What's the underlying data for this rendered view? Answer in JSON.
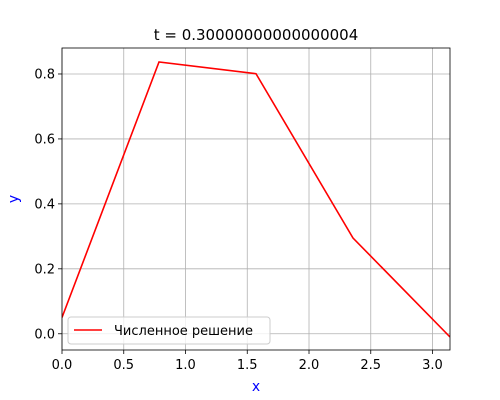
{
  "chart_data": {
    "type": "line",
    "title": "t = 0.30000000000000004",
    "xlabel": "x",
    "ylabel": "y",
    "xlim": [
      0.0,
      3.1416
    ],
    "ylim": [
      -0.05,
      0.88
    ],
    "x_ticks": [
      0.0,
      0.5,
      1.0,
      1.5,
      2.0,
      2.5,
      3.0
    ],
    "x_tick_labels": [
      "0.0",
      "0.5",
      "1.0",
      "1.5",
      "2.0",
      "2.5",
      "3.0"
    ],
    "y_ticks": [
      0.0,
      0.2,
      0.4,
      0.6,
      0.8
    ],
    "y_tick_labels": [
      "0.0",
      "0.2",
      "0.4",
      "0.6",
      "0.8"
    ],
    "grid": true,
    "legend_position": "lower-left",
    "series": [
      {
        "name": "Численное решение",
        "color": "#ff0000",
        "x": [
          0.0,
          0.785,
          1.571,
          2.356,
          3.1416
        ],
        "y": [
          0.05,
          0.837,
          0.801,
          0.295,
          -0.01
        ]
      }
    ],
    "label_color": "#0000ff"
  }
}
